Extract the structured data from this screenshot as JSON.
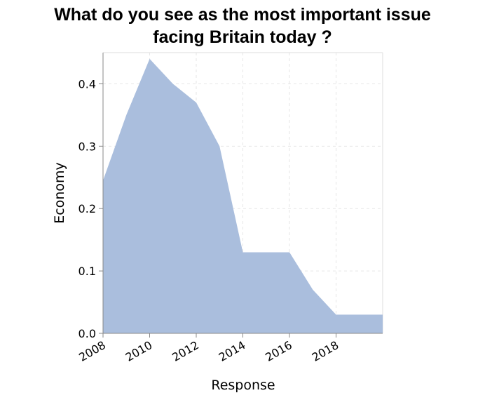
{
  "chart_data": {
    "type": "area",
    "title_lines": [
      "What do you see as the most important issue",
      "facing Britain today ?"
    ],
    "xlabel": "Response",
    "ylabel": "Economy",
    "x": [
      2008,
      2009,
      2010,
      2011,
      2012,
      2013,
      2014,
      2015,
      2016,
      2017,
      2018,
      2019,
      2020
    ],
    "series": [
      {
        "values": [
          0.245,
          0.35,
          0.44,
          0.4,
          0.37,
          0.3,
          0.13,
          0.13,
          0.13,
          0.07,
          0.03,
          0.03,
          0.03
        ]
      }
    ],
    "xlim": [
      2008,
      2020
    ],
    "ylim": [
      0,
      0.45
    ],
    "x_ticks": [
      "2008",
      "2010",
      "2012",
      "2014",
      "2016",
      "2018"
    ],
    "y_ticks": [
      "0.0",
      "0.1",
      "0.2",
      "0.3",
      "0.4"
    ],
    "grid": true,
    "fill_color": "#aabedd",
    "grid_color": "#e6e6e6",
    "axis_color": "#888888"
  }
}
